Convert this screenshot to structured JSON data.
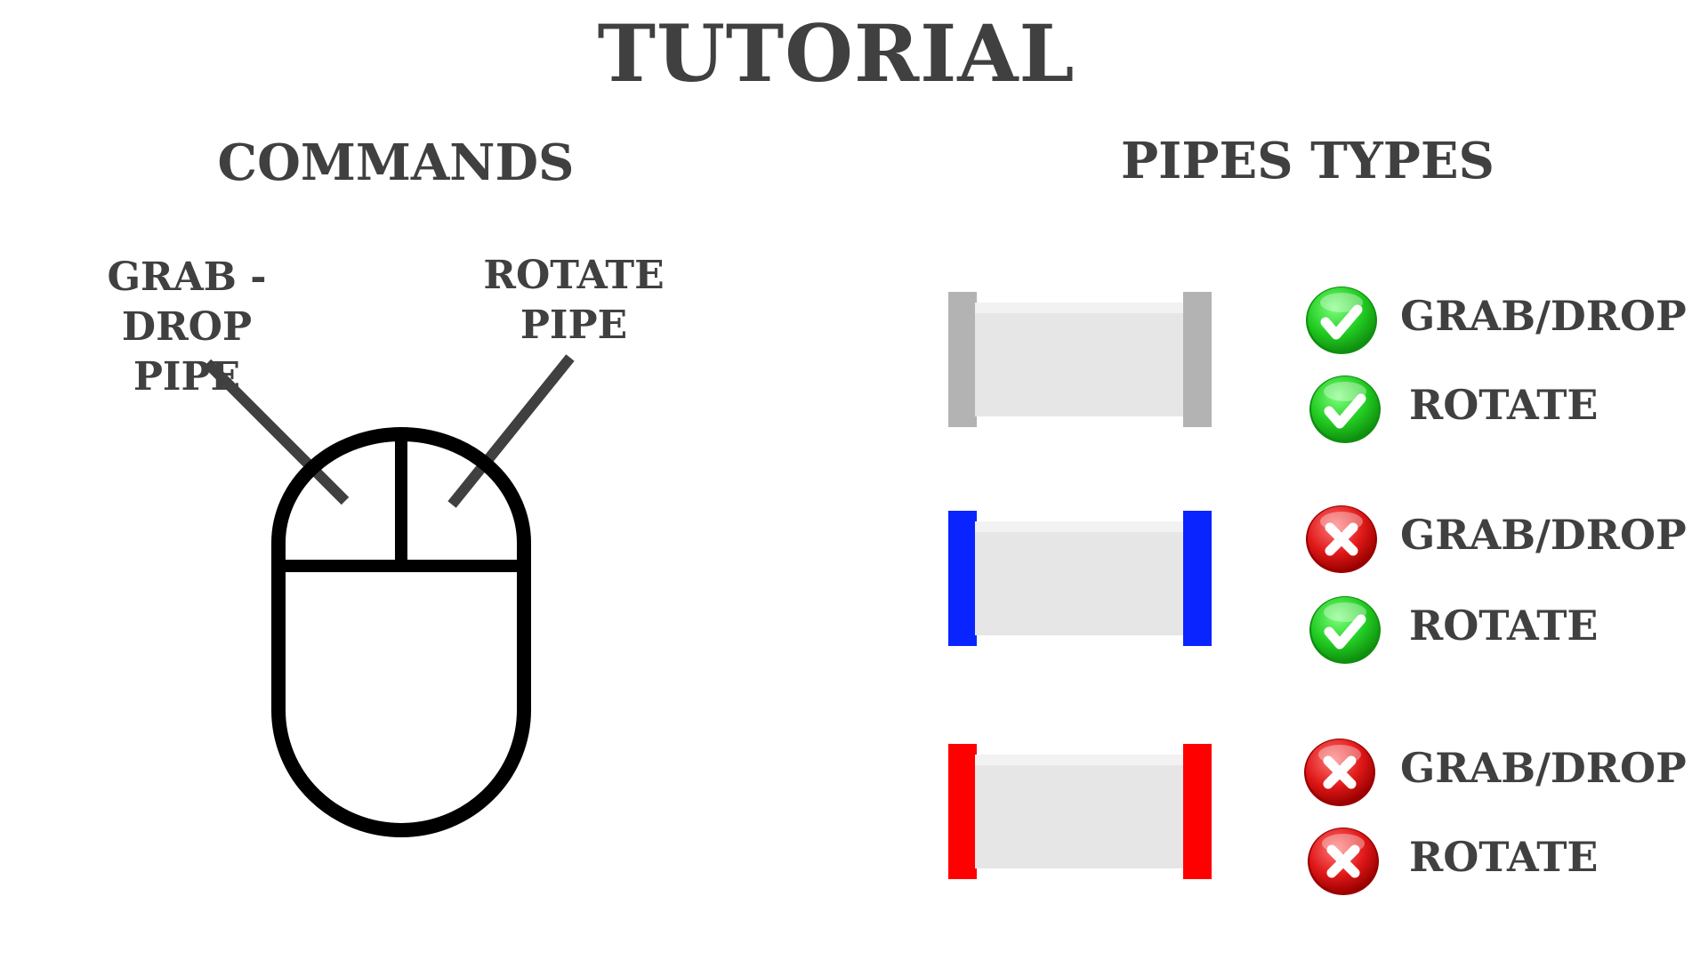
{
  "title": "TUTORIAL",
  "commands": {
    "heading": "COMMANDS",
    "left_button_label_line1": "GRAB - DROP",
    "left_button_label_line2": "PIPE",
    "right_button_label_line1": "ROTATE",
    "right_button_label_line2": "PIPE",
    "icon": "mouse-icon"
  },
  "pipe_types": {
    "heading": "PIPES TYPES",
    "pipes": [
      {
        "cap_color": "#b3b3b3",
        "permissions": [
          {
            "label": "GRAB/DROP",
            "allowed": true,
            "icon": "check-icon"
          },
          {
            "label": "ROTATE",
            "allowed": true,
            "icon": "check-icon"
          }
        ]
      },
      {
        "cap_color": "#0a24ff",
        "permissions": [
          {
            "label": "GRAB/DROP",
            "allowed": false,
            "icon": "cross-icon"
          },
          {
            "label": "ROTATE",
            "allowed": true,
            "icon": "check-icon"
          }
        ]
      },
      {
        "cap_color": "#ff0000",
        "permissions": [
          {
            "label": "GRAB/DROP",
            "allowed": false,
            "icon": "cross-icon"
          },
          {
            "label": "ROTATE",
            "allowed": false,
            "icon": "cross-icon"
          }
        ]
      }
    ]
  },
  "colors": {
    "text": "#404040",
    "allowed": "#2ecc40",
    "denied": "#e01818"
  }
}
